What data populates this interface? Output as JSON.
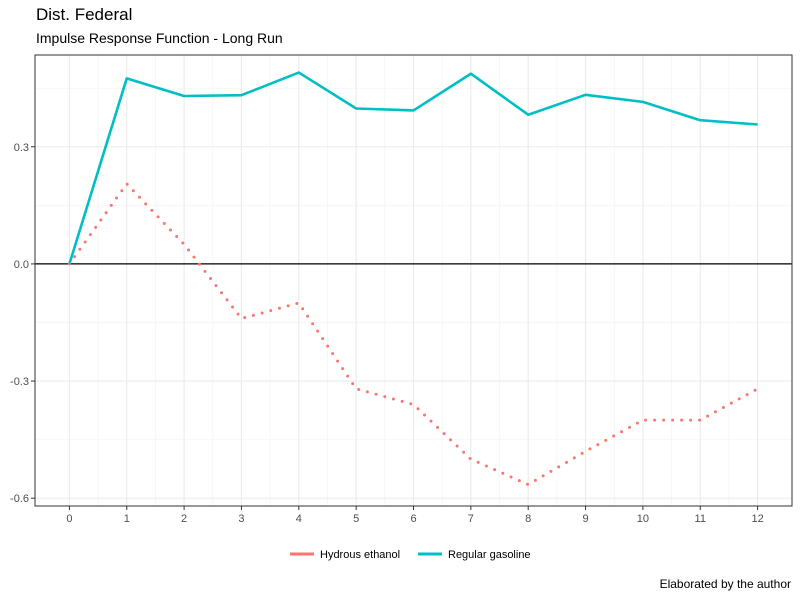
{
  "chart_data": {
    "type": "line",
    "title": "Dist. Federal",
    "subtitle": "Impulse Response Function - Long Run",
    "caption": "Elaborated by the author",
    "xlabel": "",
    "ylabel": "",
    "x": [
      0,
      1,
      2,
      3,
      4,
      5,
      6,
      7,
      8,
      9,
      10,
      11,
      12
    ],
    "xlim": [
      -0.6,
      12.6
    ],
    "ylim": [
      -0.62,
      0.535
    ],
    "yticks": [
      -0.6,
      -0.3,
      0.0,
      0.3
    ],
    "ytick_labels": [
      "-0.6",
      "-0.3",
      "0.0",
      "0.3"
    ],
    "xtick_labels": [
      "0",
      "1",
      "2",
      "3",
      "4",
      "5",
      "6",
      "7",
      "8",
      "9",
      "10",
      "11",
      "12"
    ],
    "grid": true,
    "zero_line": true,
    "legend_position": "bottom",
    "series": [
      {
        "name": "Hydrous ethanol",
        "color": "#F8766D",
        "style": "dotted",
        "values": [
          0.0,
          0.205,
          0.05,
          -0.14,
          -0.1,
          -0.32,
          -0.36,
          -0.5,
          -0.565,
          -0.48,
          -0.4,
          -0.4,
          -0.32
        ]
      },
      {
        "name": "Regular gasoline",
        "color": "#00BFC4",
        "style": "solid",
        "values": [
          0.0,
          0.475,
          0.43,
          0.432,
          0.49,
          0.398,
          0.393,
          0.487,
          0.382,
          0.433,
          0.415,
          0.368,
          0.357
        ]
      }
    ]
  }
}
